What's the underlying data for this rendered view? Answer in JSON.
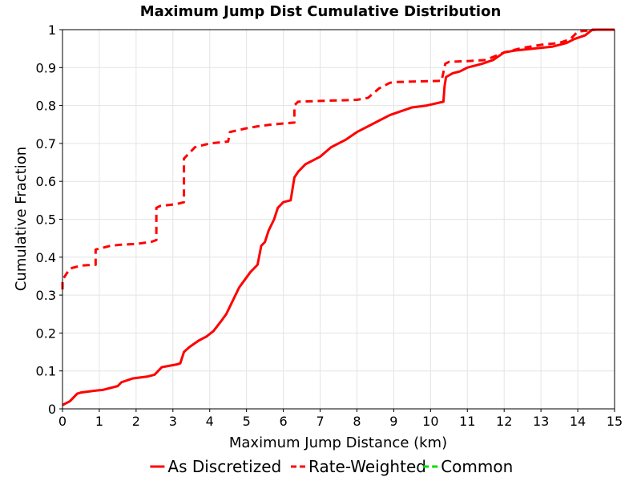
{
  "chart_data": {
    "type": "line",
    "title": "Maximum Jump Dist Cumulative Distribution",
    "xlabel": "Maximum Jump Distance (km)",
    "ylabel": "Cumulative Fraction",
    "xlim": [
      0,
      15
    ],
    "ylim": [
      0,
      1
    ],
    "xticks": [
      "0",
      "1",
      "2",
      "3",
      "4",
      "5",
      "6",
      "7",
      "8",
      "9",
      "10",
      "11",
      "12",
      "13",
      "14",
      "15"
    ],
    "yticks": [
      "0",
      "0.1",
      "0.2",
      "0.3",
      "0.4",
      "0.5",
      "0.6",
      "0.7",
      "0.8",
      "0.9",
      "1"
    ],
    "grid": true,
    "legend_position": "bottom",
    "series": [
      {
        "name": "As Discretized",
        "color": "#ff0000",
        "style": "solid",
        "x": [
          0,
          0.2,
          0.4,
          0.5,
          0.9,
          1.1,
          1.5,
          1.6,
          1.9,
          2.3,
          2.5,
          2.6,
          2.7,
          3.1,
          3.2,
          3.3,
          3.45,
          3.7,
          3.9,
          4.1,
          4.3,
          4.45,
          4.55,
          4.65,
          4.8,
          4.95,
          5.1,
          5.3,
          5.4,
          5.5,
          5.6,
          5.75,
          5.85,
          6.0,
          6.2,
          6.3,
          6.4,
          6.6,
          6.8,
          7.0,
          7.3,
          7.7,
          8.0,
          8.3,
          8.6,
          8.9,
          9.2,
          9.5,
          9.9,
          10.35,
          10.38,
          10.42,
          10.6,
          10.8,
          11.0,
          11.4,
          11.7,
          12.0,
          12.3,
          12.8,
          13.3,
          13.7,
          13.9,
          14.2,
          14.4,
          15.0
        ],
        "y": [
          0.01,
          0.02,
          0.04,
          0.043,
          0.048,
          0.05,
          0.06,
          0.07,
          0.08,
          0.085,
          0.09,
          0.1,
          0.11,
          0.117,
          0.12,
          0.15,
          0.163,
          0.18,
          0.19,
          0.205,
          0.23,
          0.25,
          0.27,
          0.29,
          0.32,
          0.34,
          0.36,
          0.38,
          0.43,
          0.44,
          0.47,
          0.5,
          0.53,
          0.545,
          0.55,
          0.61,
          0.625,
          0.645,
          0.655,
          0.665,
          0.69,
          0.71,
          0.73,
          0.745,
          0.76,
          0.775,
          0.785,
          0.795,
          0.8,
          0.81,
          0.85,
          0.875,
          0.885,
          0.89,
          0.9,
          0.91,
          0.92,
          0.94,
          0.945,
          0.95,
          0.955,
          0.965,
          0.975,
          0.985,
          1.0,
          1.0
        ]
      },
      {
        "name": "Rate-Weighted",
        "color": "#ff0000",
        "style": "dashed",
        "x": [
          0,
          0.0,
          0.1,
          0.2,
          0.5,
          0.9,
          0.9,
          1.3,
          1.6,
          2.0,
          2.4,
          2.55,
          2.55,
          2.65,
          3.1,
          3.3,
          3.3,
          3.6,
          4.0,
          4.5,
          4.55,
          5.0,
          5.3,
          5.7,
          6.3,
          6.3,
          6.4,
          7.0,
          8.0,
          8.3,
          8.6,
          8.9,
          9.1,
          10.3,
          10.4,
          10.5,
          11.0,
          11.5,
          12.0,
          12.5,
          13.0,
          13.5,
          13.8,
          14.0,
          14.5,
          15.0
        ],
        "y": [
          0.315,
          0.34,
          0.355,
          0.37,
          0.378,
          0.38,
          0.42,
          0.43,
          0.433,
          0.435,
          0.44,
          0.445,
          0.53,
          0.535,
          0.54,
          0.545,
          0.66,
          0.69,
          0.7,
          0.705,
          0.73,
          0.74,
          0.745,
          0.75,
          0.755,
          0.8,
          0.81,
          0.812,
          0.815,
          0.82,
          0.845,
          0.86,
          0.862,
          0.865,
          0.91,
          0.915,
          0.917,
          0.92,
          0.94,
          0.952,
          0.96,
          0.965,
          0.975,
          0.995,
          1.0,
          1.0
        ]
      },
      {
        "name": "Common",
        "color": "#00dd00",
        "style": "dashed",
        "x": [],
        "y": []
      }
    ]
  }
}
